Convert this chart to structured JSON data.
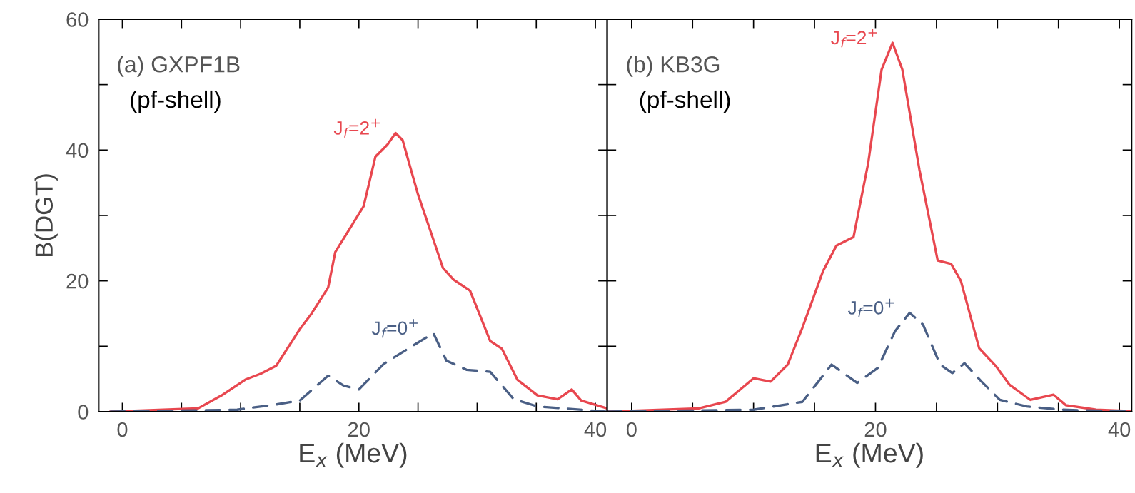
{
  "chart_data": [
    {
      "type": "line",
      "title": "(a) GXPF1B",
      "subtitle": "(pf-shell)",
      "xlabel": "E$_{x}$ (MeV)",
      "ylabel": "B(DGT)",
      "xlim": [
        -2,
        41
      ],
      "ylim": [
        0,
        60
      ],
      "xticks": [
        0,
        {
          "value": 5,
          "label": null
        },
        {
          "value": 10,
          "label": null
        },
        {
          "value": 15,
          "label": null
        },
        20,
        {
          "value": 25,
          "label": null
        },
        {
          "value": 30,
          "label": null
        },
        {
          "value": 35,
          "label": null
        },
        40
      ],
      "yticks": [
        0,
        {
          "value": 10,
          "label": null
        },
        20,
        {
          "value": 30,
          "label": null
        },
        40,
        {
          "value": 50,
          "label": null
        },
        60
      ],
      "grid": false,
      "legend": false,
      "series": [
        {
          "name": "J$_{f}$=2$^{+}$",
          "color": "#e8474f",
          "line_style": "solid",
          "x": [
            -1,
            6.4,
            8.4,
            10.4,
            11.7,
            13,
            15,
            16,
            17.4,
            18,
            19,
            20.4,
            21.4,
            22.4,
            23.1,
            23.7,
            25,
            26,
            27.1,
            28,
            29.4,
            31.1,
            32.1,
            33.4,
            35.1,
            36.8,
            38,
            38.8,
            41
          ],
          "values": [
            0,
            0.5,
            2.5,
            4.9,
            5.8,
            7,
            12.6,
            15,
            19,
            24.4,
            27.3,
            31.4,
            39,
            40.8,
            42.6,
            41.5,
            33.2,
            27.9,
            22,
            20.2,
            18.5,
            10.8,
            9.6,
            4.9,
            2.5,
            1.9,
            3.4,
            1.7,
            0.5
          ]
        },
        {
          "name": "J$_{f}$=0$^{+}$",
          "color": "#4a5f85",
          "line_style": "dashed",
          "x": [
            -1,
            9.7,
            13,
            15,
            17.4,
            18.7,
            20,
            22.1,
            24.4,
            26.3,
            27.4,
            29.1,
            31.1,
            33.1,
            35.1,
            41
          ],
          "values": [
            0,
            0.3,
            1.1,
            1.7,
            5.5,
            4,
            3.4,
            7.3,
            9.9,
            12,
            7.8,
            6.4,
            6.1,
            1.9,
            0.8,
            0
          ]
        }
      ]
    },
    {
      "type": "line",
      "title": "(b) KB3G",
      "subtitle": "(pf-shell)",
      "xlabel": "E$_{x}$ (MeV)",
      "xlim": [
        -2,
        41
      ],
      "ylim": [
        0,
        60
      ],
      "tick_labels": "x",
      "xticks": [
        0,
        {
          "value": 5,
          "label": null
        },
        {
          "value": 10,
          "label": null
        },
        {
          "value": 15,
          "label": null
        },
        20,
        {
          "value": 25,
          "label": null
        },
        {
          "value": 30,
          "label": null
        },
        {
          "value": 35,
          "label": null
        },
        40
      ],
      "yticks": [
        0,
        {
          "value": 10,
          "label": null
        },
        20,
        {
          "value": 30,
          "label": null
        },
        40,
        {
          "value": 50,
          "label": null
        },
        60
      ],
      "grid": false,
      "legend": false,
      "series": [
        {
          "name": "J$_{f}$=2$^{+}$",
          "color": "#e8474f",
          "line_style": "solid",
          "x": [
            -2,
            5.5,
            7.7,
            10,
            11.4,
            12.8,
            14,
            15.7,
            16.8,
            18.2,
            19.4,
            20.5,
            21.4,
            22.2,
            23.6,
            25.1,
            26.2,
            27,
            28.5,
            29.9,
            31,
            32.7,
            34.6,
            35.6,
            38.1,
            41
          ],
          "values": [
            0,
            0.5,
            1.5,
            5.1,
            4.6,
            7.2,
            12.8,
            21.5,
            25.4,
            26.7,
            38,
            52.3,
            56.4,
            52.3,
            37,
            23.1,
            22.6,
            20,
            9.7,
            6.9,
            4.1,
            1.8,
            2.6,
            1,
            0.3,
            0.1
          ]
        },
        {
          "name": "J$_{f}$=0$^{+}$",
          "color": "#4a5f85",
          "line_style": "dashed",
          "x": [
            -2,
            10,
            14,
            15.1,
            16.4,
            18.5,
            20.2,
            21.6,
            22.8,
            23.9,
            25.3,
            26.3,
            27.3,
            28.7,
            30.2,
            32.4,
            35.3,
            41
          ],
          "values": [
            0,
            0.3,
            1.5,
            4.1,
            7.2,
            4.4,
            6.7,
            12.3,
            15.1,
            13.3,
            7.2,
            5.9,
            7.4,
            4.6,
            1.8,
            0.8,
            0.3,
            0
          ]
        }
      ]
    }
  ]
}
